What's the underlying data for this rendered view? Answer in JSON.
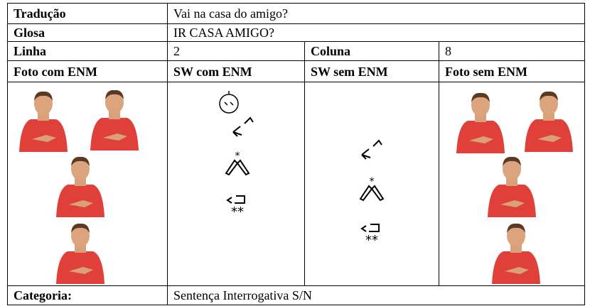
{
  "table": {
    "translation": {
      "label": "Tradução",
      "value": "Vai na casa do amigo?"
    },
    "gloss": {
      "label": "Glosa",
      "value": "IR CASA AMIGO?"
    },
    "position": {
      "line_label": "Linha",
      "line": "2",
      "column_label": "Coluna",
      "column": "8"
    },
    "headers": [
      "Foto com ENM",
      "SW com ENM",
      "SW sem ENM",
      "Foto sem ENM"
    ],
    "category": {
      "label": "Categoria:",
      "value": "Sentença Interrogativa S/N"
    }
  }
}
